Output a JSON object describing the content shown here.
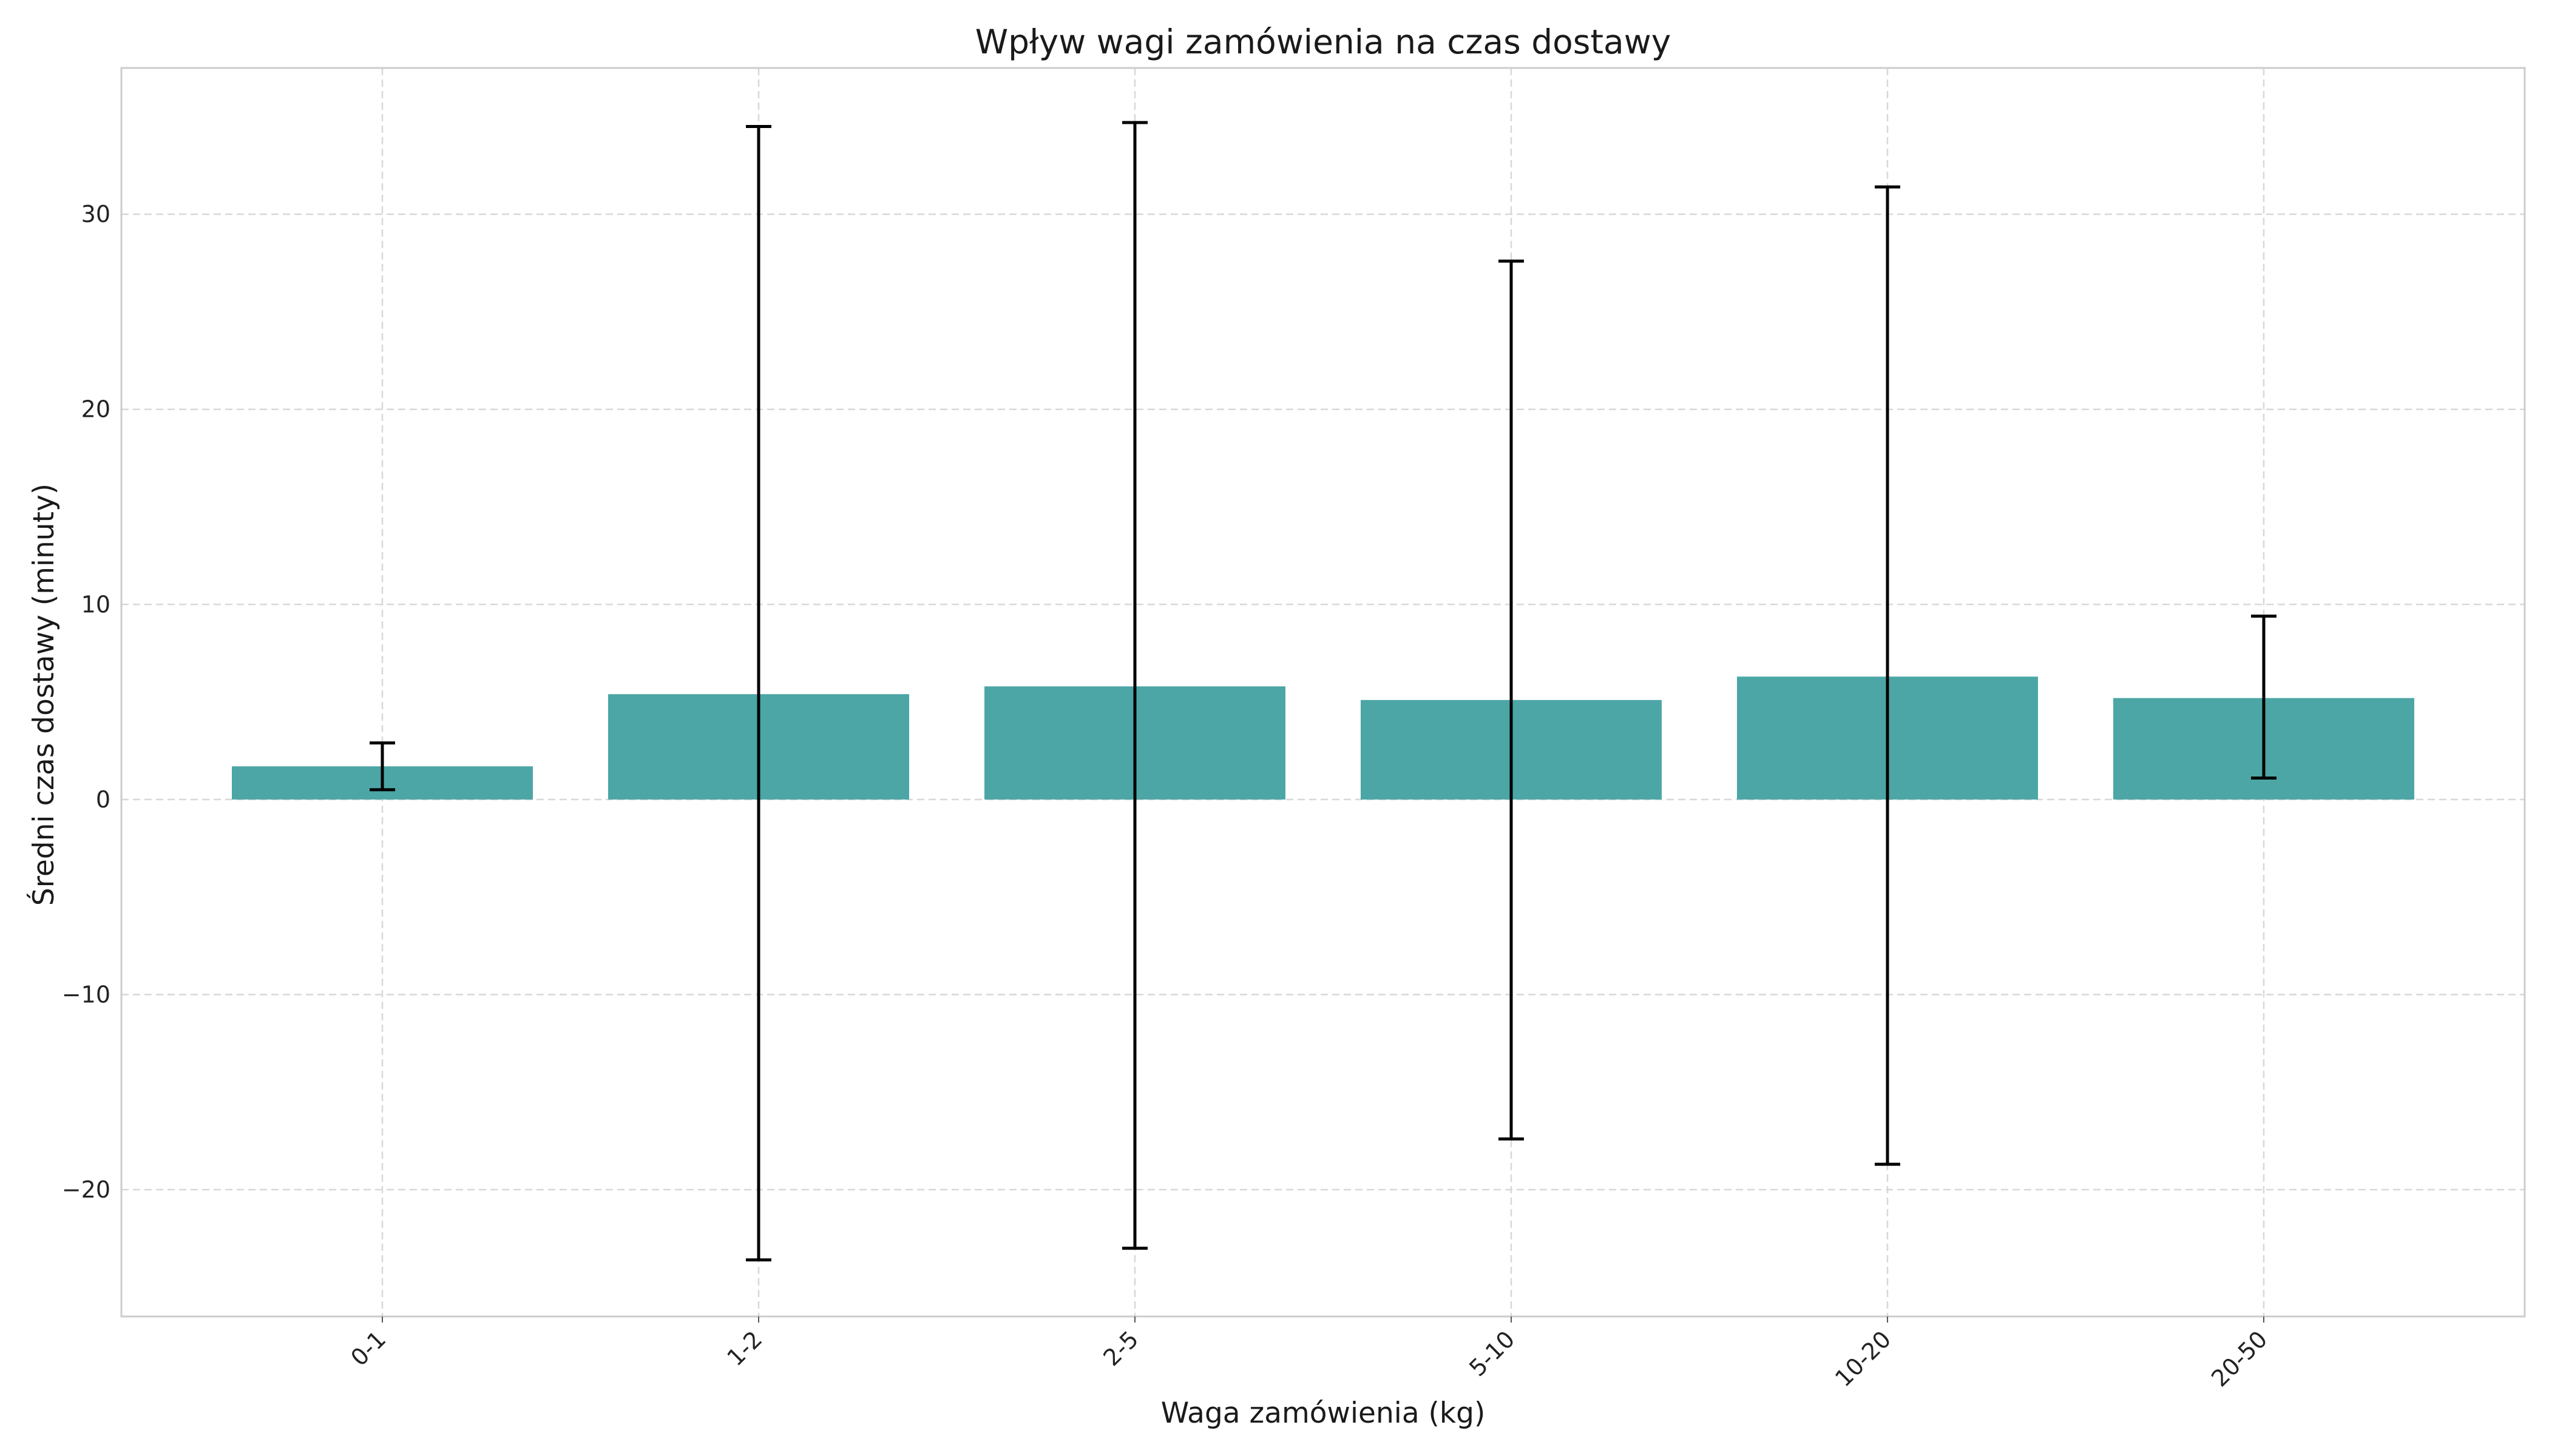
{
  "chart_data": {
    "type": "bar",
    "title": "Wpływ wagi zamówienia na czas dostawy",
    "xlabel": "Waga zamówienia (kg)",
    "ylabel": "Średni czas dostawy (minuty)",
    "categories": [
      "0-1",
      "1-2",
      "2-5",
      "5-10",
      "10-20",
      "20-50"
    ],
    "values": [
      1.7,
      5.4,
      5.8,
      5.1,
      6.3,
      5.2
    ],
    "error_lower": [
      0.5,
      -23.6,
      -23.0,
      -17.4,
      -18.7,
      1.1
    ],
    "error_upper": [
      2.9,
      34.5,
      34.7,
      27.6,
      31.4,
      9.4
    ],
    "yticks": [
      -20,
      -10,
      0,
      10,
      20,
      30
    ],
    "ylim": [
      -26.5,
      37.5
    ],
    "grid": true,
    "bar_color": "#4ca6a6"
  }
}
